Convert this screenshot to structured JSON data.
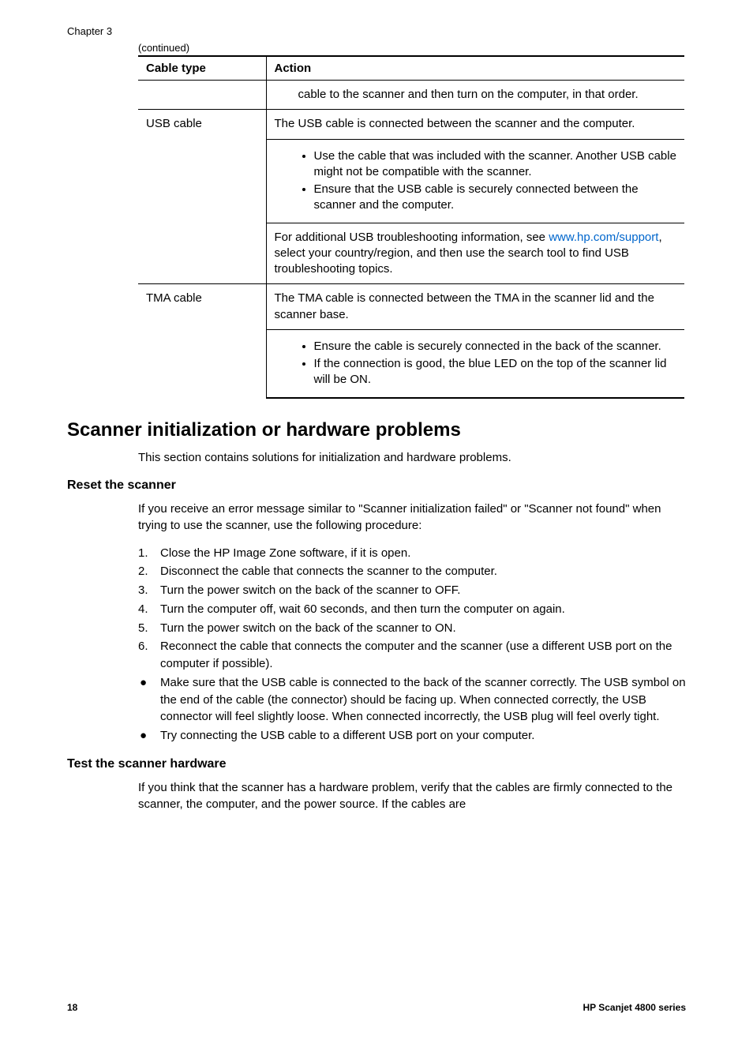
{
  "chapter_label": "Chapter 3",
  "continued_label": "(continued)",
  "table": {
    "header": {
      "col1": "Cable type",
      "col2": "Action"
    },
    "row1": {
      "type": "",
      "action": "cable to the scanner and then turn on the computer, in that order."
    },
    "row2": {
      "type": "USB cable",
      "intro": "The USB cable is connected between the scanner and the computer.",
      "bullet1": "Use the cable that was included with the scanner. Another USB cable might not be compatible with the scanner.",
      "bullet2": "Ensure that the USB cable is securely connected between the scanner and the computer.",
      "outro_pre": "For additional USB troubleshooting information, see ",
      "outro_link": "www.hp.com/support",
      "outro_post": ", select your country/region, and then use the search tool to find USB troubleshooting topics."
    },
    "row3": {
      "type": "TMA cable",
      "intro": "The TMA cable is connected between the TMA in the scanner lid and the scanner base.",
      "bullet1": "Ensure the cable is securely connected in the back of the scanner.",
      "bullet2": "If the connection is good, the blue LED on the top of the scanner lid will be ON."
    }
  },
  "section1": {
    "heading": "Scanner initialization or hardware problems",
    "intro": "This section contains solutions for initialization and hardware problems."
  },
  "reset": {
    "heading": "Reset the scanner",
    "intro": "If you receive an error message similar to \"Scanner initialization failed\" or \"Scanner not found\" when trying to use the scanner, use the following procedure:",
    "steps": {
      "s1": "Close the HP Image Zone software, if it is open.",
      "s2": "Disconnect the cable that connects the scanner to the computer.",
      "s3": "Turn the power switch on the back of the scanner to OFF.",
      "s4": "Turn the computer off, wait 60 seconds, and then turn the computer on again.",
      "s5": "Turn the power switch on the back of the scanner to ON.",
      "s6": "Reconnect the cable that connects the computer and the scanner (use a different USB port on the computer if possible)."
    },
    "bullets": {
      "b1": "Make sure that the USB cable is connected to the back of the scanner correctly. The USB symbol on the end of the cable (the connector) should be facing up. When connected correctly, the USB connector will feel slightly loose. When connected incorrectly, the USB plug will feel overly tight.",
      "b2": "Try connecting the USB cable to a different USB port on your computer."
    }
  },
  "test": {
    "heading": "Test the scanner hardware",
    "intro": "If you think that the scanner has a hardware problem, verify that the cables are firmly connected to the scanner, the computer, and the power source. If the cables are"
  },
  "footer": {
    "page": "18",
    "product": "HP Scanjet 4800 series"
  }
}
